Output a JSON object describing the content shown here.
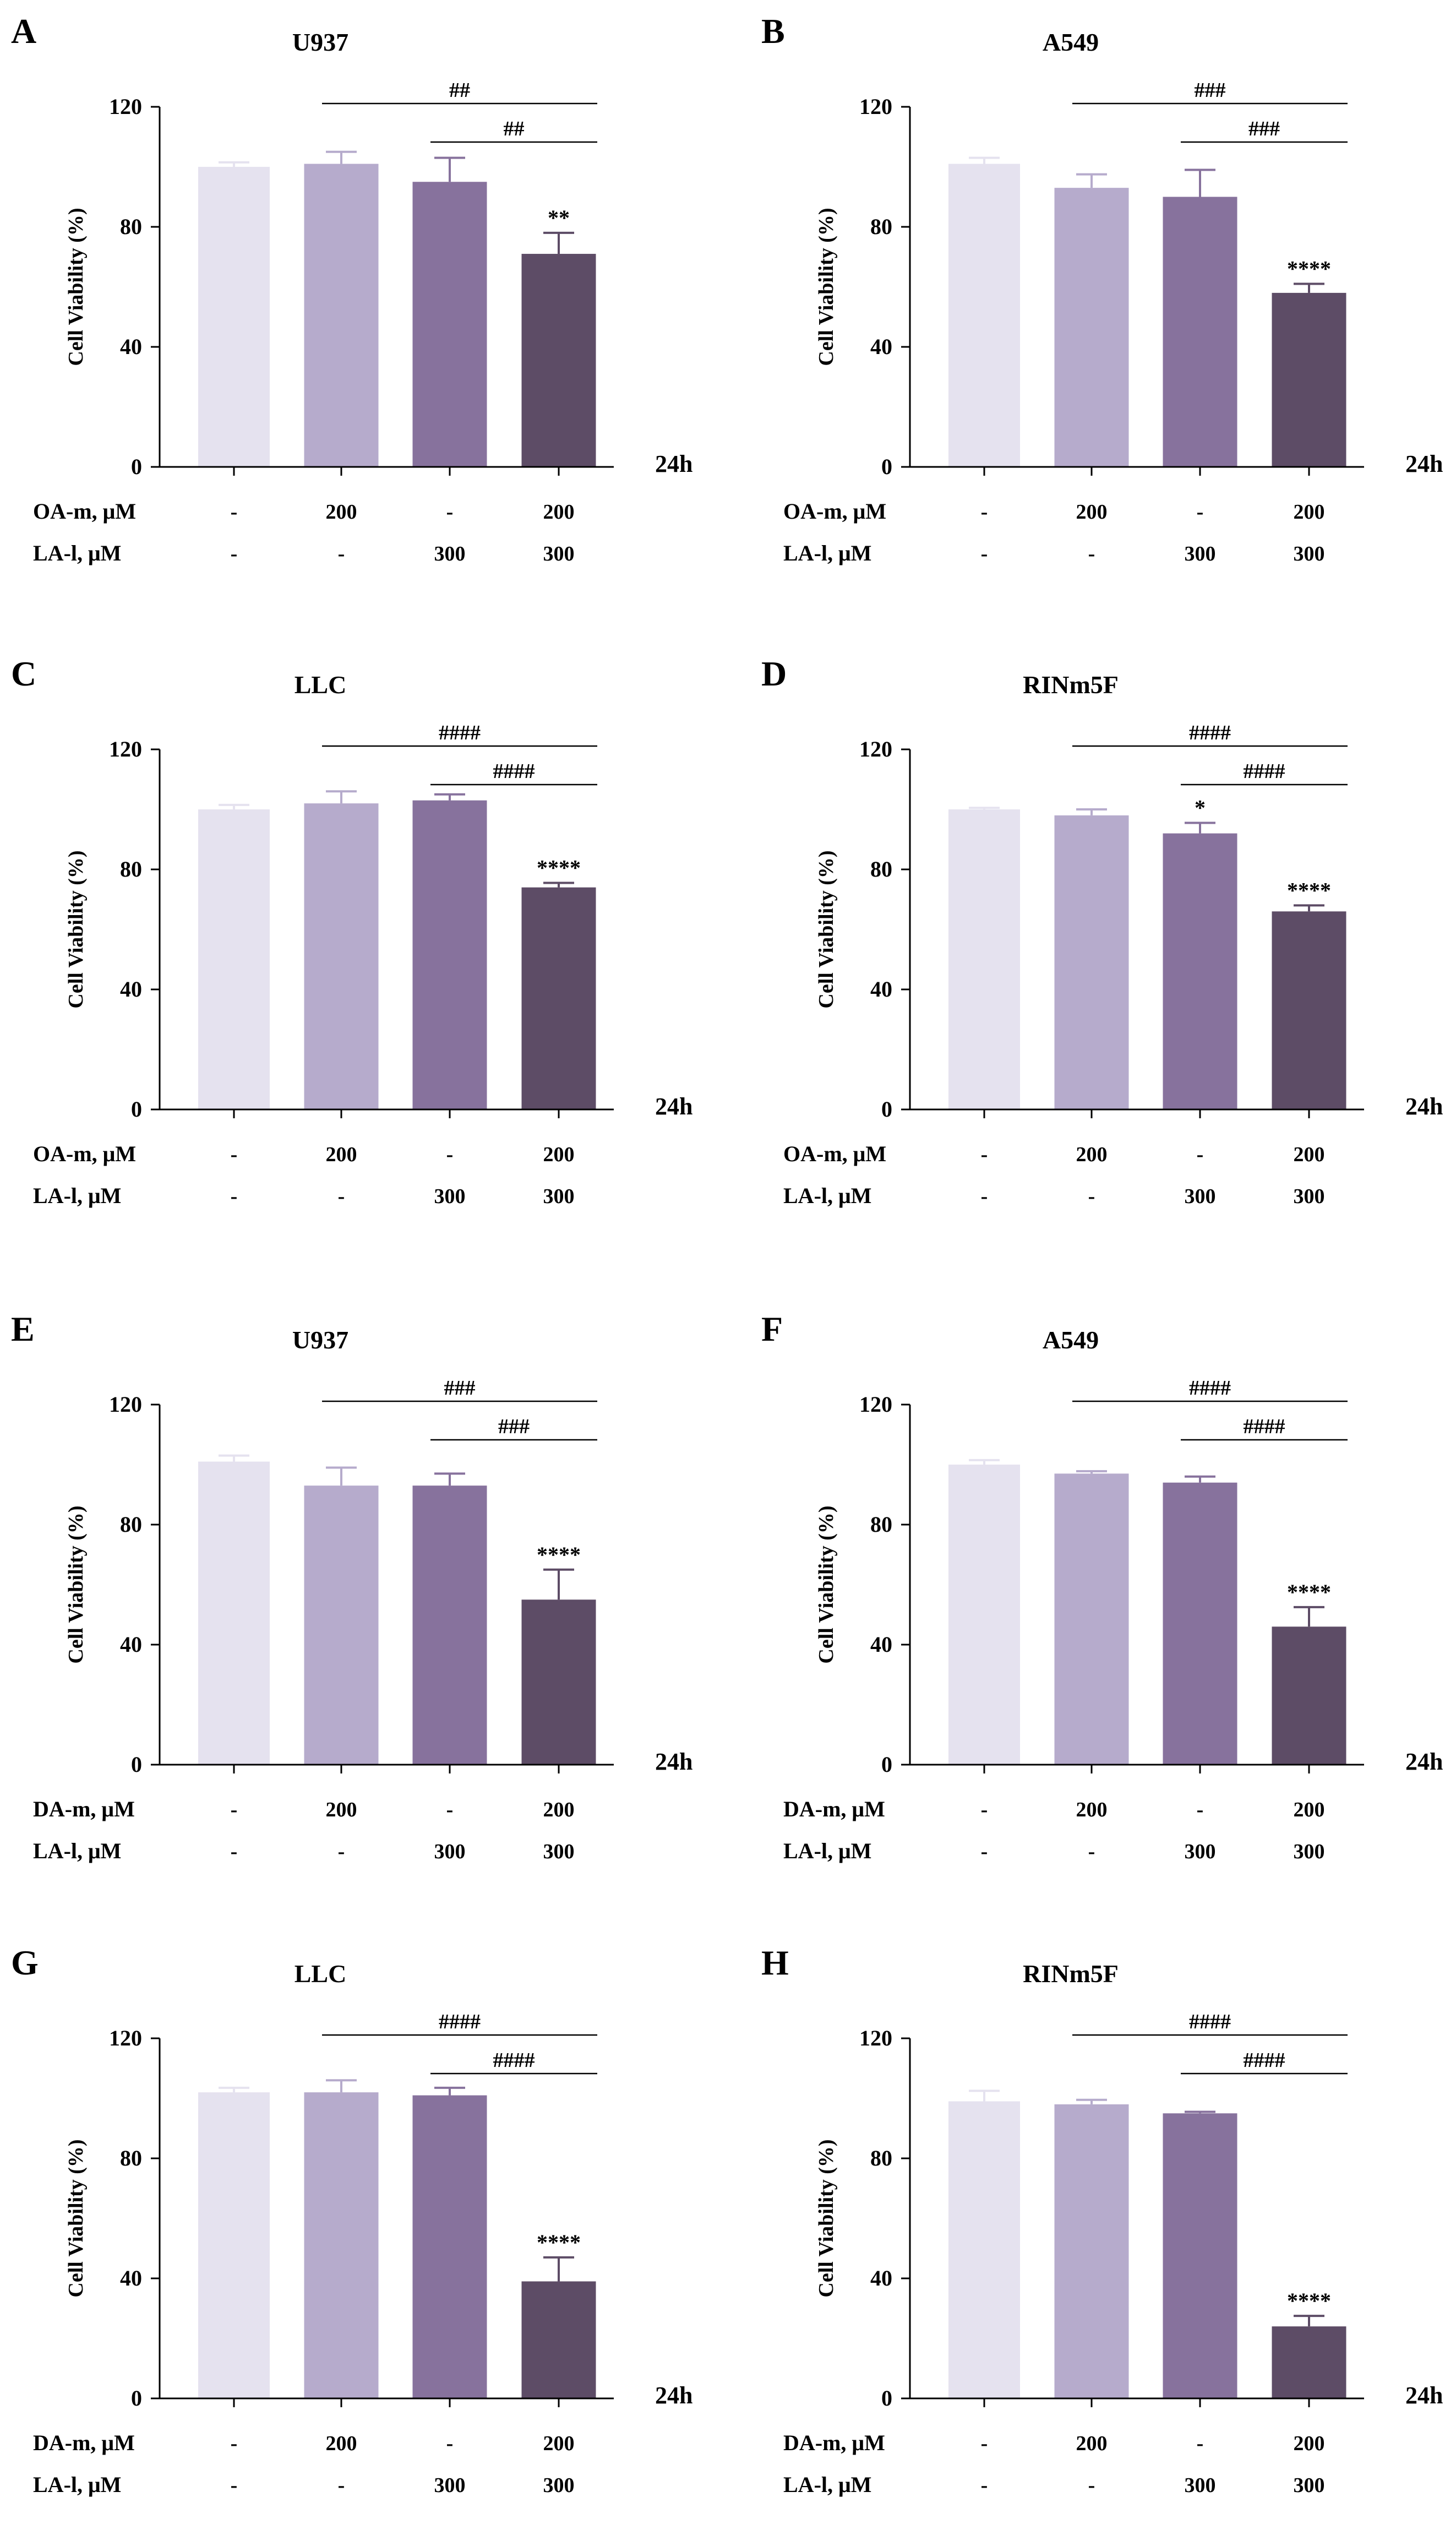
{
  "chart_data": [
    {
      "type": "bar",
      "panel": "A",
      "title": "U937",
      "ylabel": "Cell Viability (%)",
      "ylim": [
        0,
        120
      ],
      "yticks": [
        0,
        40,
        80,
        120
      ],
      "timepoint": "24h",
      "bar_colors": [
        "#e5e2ef",
        "#b6abcc",
        "#87729d",
        "#5d4c66"
      ],
      "treatments": [
        {
          "label": "OA-m, μM",
          "values": [
            "-",
            "200",
            "-",
            "200"
          ]
        },
        {
          "label": "LA-l, μM",
          "values": [
            "-",
            "-",
            "300",
            "300"
          ]
        }
      ],
      "values": [
        100,
        101,
        95,
        71
      ],
      "errors": [
        1.5,
        4,
        8,
        7
      ],
      "stars": [
        "",
        "",
        "",
        "**"
      ],
      "brackets": [
        {
          "from": 1,
          "to": 3,
          "label": "##"
        },
        {
          "from": 2,
          "to": 3,
          "label": "##"
        }
      ]
    },
    {
      "type": "bar",
      "panel": "B",
      "title": "A549",
      "ylabel": "Cell Viability (%)",
      "ylim": [
        0,
        120
      ],
      "yticks": [
        0,
        40,
        80,
        120
      ],
      "timepoint": "24h",
      "bar_colors": [
        "#e5e2ef",
        "#b6abcc",
        "#87729d",
        "#5d4c66"
      ],
      "treatments": [
        {
          "label": "OA-m, μM",
          "values": [
            "-",
            "200",
            "-",
            "200"
          ]
        },
        {
          "label": "LA-l, μM",
          "values": [
            "-",
            "-",
            "300",
            "300"
          ]
        }
      ],
      "values": [
        101,
        93,
        90,
        58
      ],
      "errors": [
        2,
        4.5,
        9,
        3
      ],
      "stars": [
        "",
        "",
        "",
        "****"
      ],
      "brackets": [
        {
          "from": 1,
          "to": 3,
          "label": "###"
        },
        {
          "from": 2,
          "to": 3,
          "label": "###"
        }
      ]
    },
    {
      "type": "bar",
      "panel": "C",
      "title": "LLC",
      "ylabel": "Cell Viability (%)",
      "ylim": [
        0,
        120
      ],
      "yticks": [
        0,
        40,
        80,
        120
      ],
      "timepoint": "24h",
      "bar_colors": [
        "#e5e2ef",
        "#b6abcc",
        "#87729d",
        "#5d4c66"
      ],
      "treatments": [
        {
          "label": "OA-m, μM",
          "values": [
            "-",
            "200",
            "-",
            "200"
          ]
        },
        {
          "label": "LA-l, μM",
          "values": [
            "-",
            "-",
            "300",
            "300"
          ]
        }
      ],
      "values": [
        100,
        102,
        103,
        74
      ],
      "errors": [
        1.5,
        4,
        2,
        1.5
      ],
      "stars": [
        "",
        "",
        "",
        "****"
      ],
      "brackets": [
        {
          "from": 1,
          "to": 3,
          "label": "####"
        },
        {
          "from": 2,
          "to": 3,
          "label": "####"
        }
      ]
    },
    {
      "type": "bar",
      "panel": "D",
      "title": "RINm5F",
      "ylabel": "Cell Viability (%)",
      "ylim": [
        0,
        120
      ],
      "yticks": [
        0,
        40,
        80,
        120
      ],
      "timepoint": "24h",
      "bar_colors": [
        "#e5e2ef",
        "#b6abcc",
        "#87729d",
        "#5d4c66"
      ],
      "treatments": [
        {
          "label": "OA-m, μM",
          "values": [
            "-",
            "200",
            "-",
            "200"
          ]
        },
        {
          "label": "LA-l, μM",
          "values": [
            "-",
            "-",
            "300",
            "300"
          ]
        }
      ],
      "values": [
        100,
        98,
        92,
        66
      ],
      "errors": [
        0.5,
        2,
        3.5,
        2
      ],
      "stars": [
        "",
        "",
        "*",
        "****"
      ],
      "brackets": [
        {
          "from": 1,
          "to": 3,
          "label": "####"
        },
        {
          "from": 2,
          "to": 3,
          "label": "####"
        }
      ]
    },
    {
      "type": "bar",
      "panel": "E",
      "title": "U937",
      "ylabel": "Cell Viability (%)",
      "ylim": [
        0,
        120
      ],
      "yticks": [
        0,
        40,
        80,
        120
      ],
      "timepoint": "24h",
      "bar_colors": [
        "#e5e2ef",
        "#b6abcc",
        "#87729d",
        "#5d4c66"
      ],
      "treatments": [
        {
          "label": "DA-m, μM",
          "values": [
            "-",
            "200",
            "-",
            "200"
          ]
        },
        {
          "label": "LA-l, μM",
          "values": [
            "-",
            "-",
            "300",
            "300"
          ]
        }
      ],
      "values": [
        101,
        93,
        93,
        55
      ],
      "errors": [
        2,
        6,
        4,
        10
      ],
      "stars": [
        "",
        "",
        "",
        "****"
      ],
      "brackets": [
        {
          "from": 1,
          "to": 3,
          "label": "###"
        },
        {
          "from": 2,
          "to": 3,
          "label": "###"
        }
      ]
    },
    {
      "type": "bar",
      "panel": "F",
      "title": "A549",
      "ylabel": "Cell Viability (%)",
      "ylim": [
        0,
        120
      ],
      "yticks": [
        0,
        40,
        80,
        120
      ],
      "timepoint": "24h",
      "bar_colors": [
        "#e5e2ef",
        "#b6abcc",
        "#87729d",
        "#5d4c66"
      ],
      "treatments": [
        {
          "label": "DA-m, μM",
          "values": [
            "-",
            "200",
            "-",
            "200"
          ]
        },
        {
          "label": "LA-l, μM",
          "values": [
            "-",
            "-",
            "300",
            "300"
          ]
        }
      ],
      "values": [
        100,
        97,
        94,
        46
      ],
      "errors": [
        1.5,
        0.8,
        2,
        6.5
      ],
      "stars": [
        "",
        "",
        "",
        "****"
      ],
      "brackets": [
        {
          "from": 1,
          "to": 3,
          "label": "####"
        },
        {
          "from": 2,
          "to": 3,
          "label": "####"
        }
      ]
    },
    {
      "type": "bar",
      "panel": "G",
      "title": "LLC",
      "ylabel": "Cell Viability (%)",
      "ylim": [
        0,
        120
      ],
      "yticks": [
        0,
        40,
        80,
        120
      ],
      "timepoint": "24h",
      "bar_colors": [
        "#e5e2ef",
        "#b6abcc",
        "#87729d",
        "#5d4c66"
      ],
      "treatments": [
        {
          "label": "DA-m, μM",
          "values": [
            "-",
            "200",
            "-",
            "200"
          ]
        },
        {
          "label": "LA-l, μM",
          "values": [
            "-",
            "-",
            "300",
            "300"
          ]
        }
      ],
      "values": [
        102,
        102,
        101,
        39
      ],
      "errors": [
        1.5,
        4,
        2.5,
        8
      ],
      "stars": [
        "",
        "",
        "",
        "****"
      ],
      "brackets": [
        {
          "from": 1,
          "to": 3,
          "label": "####"
        },
        {
          "from": 2,
          "to": 3,
          "label": "####"
        }
      ]
    },
    {
      "type": "bar",
      "panel": "H",
      "title": "RINm5F",
      "ylabel": "Cell Viability (%)",
      "ylim": [
        0,
        120
      ],
      "yticks": [
        0,
        40,
        80,
        120
      ],
      "timepoint": "24h",
      "bar_colors": [
        "#e5e2ef",
        "#b6abcc",
        "#87729d",
        "#5d4c66"
      ],
      "treatments": [
        {
          "label": "DA-m, μM",
          "values": [
            "-",
            "200",
            "-",
            "200"
          ]
        },
        {
          "label": "LA-l, μM",
          "values": [
            "-",
            "-",
            "300",
            "300"
          ]
        }
      ],
      "values": [
        99,
        98,
        95,
        24
      ],
      "errors": [
        3.5,
        1.5,
        0.5,
        3.5
      ],
      "stars": [
        "",
        "",
        "",
        "****"
      ],
      "brackets": [
        {
          "from": 1,
          "to": 3,
          "label": "####"
        },
        {
          "from": 2,
          "to": 3,
          "label": "####"
        }
      ]
    }
  ]
}
